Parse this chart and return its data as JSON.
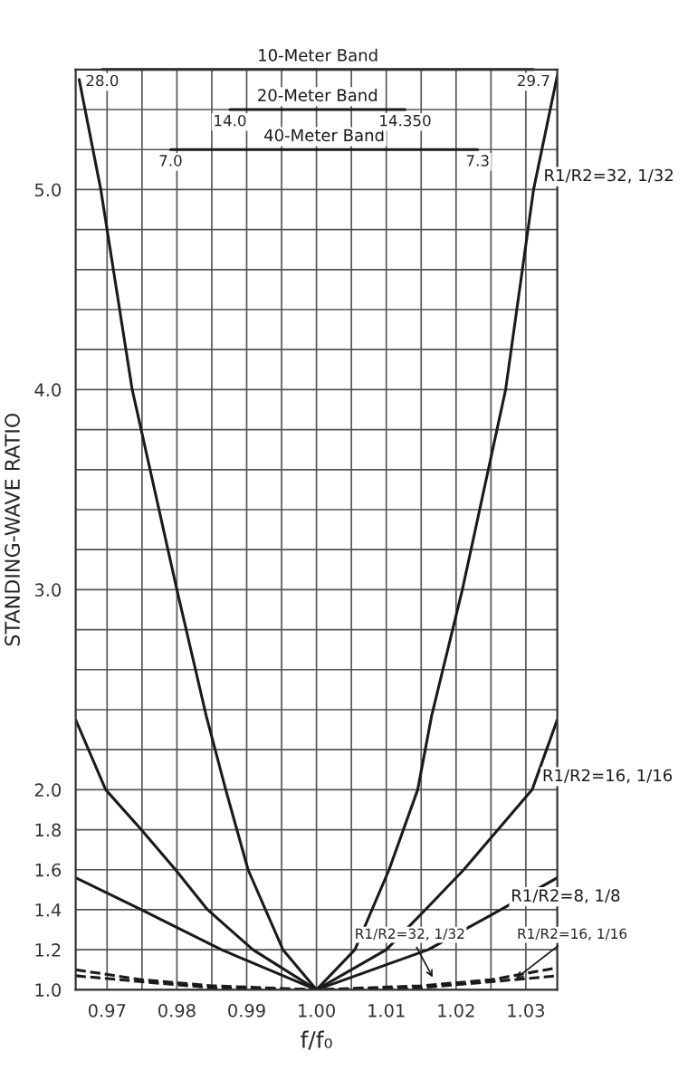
{
  "chart_data": {
    "type": "line",
    "xlabel": "f/f₀",
    "ylabel": "STANDING-WAVE RATIO",
    "xlim": [
      0.9655,
      1.0345
    ],
    "ylim": [
      1.0,
      5.6
    ],
    "xticks": [
      {
        "value": 0.97,
        "label": "0.97"
      },
      {
        "value": 0.975,
        "label": null
      },
      {
        "value": 0.98,
        "label": "0.98"
      },
      {
        "value": 0.985,
        "label": null
      },
      {
        "value": 0.99,
        "label": "0.99"
      },
      {
        "value": 0.995,
        "label": null
      },
      {
        "value": 1.0,
        "label": "1.00"
      },
      {
        "value": 1.005,
        "label": null
      },
      {
        "value": 1.01,
        "label": "1.01"
      },
      {
        "value": 1.015,
        "label": null
      },
      {
        "value": 1.02,
        "label": "1.02"
      },
      {
        "value": 1.025,
        "label": null
      },
      {
        "value": 1.03,
        "label": "1.03"
      }
    ],
    "yticks": [
      {
        "value": 1.0,
        "label": "1.0"
      },
      {
        "value": 1.2,
        "label": "1.2"
      },
      {
        "value": 1.4,
        "label": "1.4"
      },
      {
        "value": 1.6,
        "label": "1.6"
      },
      {
        "value": 1.8,
        "label": "1.8"
      },
      {
        "value": 2.0,
        "label": "2.0"
      },
      {
        "value": 2.2,
        "label": null
      },
      {
        "value": 2.4,
        "label": null
      },
      {
        "value": 2.6,
        "label": null
      },
      {
        "value": 2.8,
        "label": null
      },
      {
        "value": 3.0,
        "label": "3.0"
      },
      {
        "value": 3.2,
        "label": null
      },
      {
        "value": 3.4,
        "label": null
      },
      {
        "value": 3.6,
        "label": null
      },
      {
        "value": 3.8,
        "label": null
      },
      {
        "value": 4.0,
        "label": "4.0"
      },
      {
        "value": 4.2,
        "label": null
      },
      {
        "value": 4.4,
        "label": null
      },
      {
        "value": 4.6,
        "label": null
      },
      {
        "value": 4.8,
        "label": null
      },
      {
        "value": 5.0,
        "label": "5.0"
      },
      {
        "value": 5.2,
        "label": null
      },
      {
        "value": 5.4,
        "label": null
      },
      {
        "value": 5.6,
        "label": null
      }
    ],
    "grid": true,
    "legend": false,
    "marker": "none",
    "series": [
      {
        "name": "R1/R2=32, 1/32",
        "color": "#1a1a1a",
        "line_style": "solid",
        "x": [
          0.966,
          0.9691,
          0.9736,
          0.98,
          0.9842,
          0.987,
          0.9902,
          0.9952,
          1.0,
          1.0055,
          1.0104,
          1.0145,
          1.0165,
          1.0209,
          1.0271,
          1.0311,
          1.0345
        ],
        "values": [
          5.55,
          5.0,
          4.0,
          3.0,
          2.37,
          2.0,
          1.6,
          1.2,
          1.0,
          1.2,
          1.6,
          2.0,
          2.37,
          3.0,
          4.0,
          5.0,
          5.57
        ]
      },
      {
        "name": "R1/R2=16, 1/16",
        "color": "#1a1a1a",
        "line_style": "solid",
        "x": [
          0.9655,
          0.9698,
          0.9749,
          0.9798,
          0.9844,
          0.9909,
          1.0,
          1.01,
          1.0156,
          1.0211,
          1.026,
          1.0309,
          1.0345
        ],
        "values": [
          2.35,
          2.0,
          1.8,
          1.6,
          1.4,
          1.2,
          1.0,
          1.2,
          1.4,
          1.6,
          1.8,
          2.0,
          2.35
        ]
      },
      {
        "name": "R1/R2=8, 1/8",
        "color": "#1a1a1a",
        "line_style": "solid",
        "x": [
          0.9655,
          0.9749,
          0.9864,
          1.0,
          1.016,
          1.0264,
          1.0345
        ],
        "values": [
          1.56,
          1.4,
          1.2,
          1.0,
          1.2,
          1.4,
          1.56
        ]
      },
      {
        "color": "#1a1a1a",
        "line_style": "dashed",
        "x": [
          0.9655,
          0.975,
          0.985,
          1.0,
          1.015,
          1.025,
          1.0345
        ],
        "values": [
          1.1,
          1.05,
          1.02,
          1.0,
          1.02,
          1.05,
          1.11
        ]
      },
      {
        "color": "#1a1a1a",
        "line_style": "dashed",
        "x": [
          0.9655,
          0.975,
          0.985,
          1.0,
          1.015,
          1.025,
          1.0345
        ],
        "values": [
          1.07,
          1.04,
          1.01,
          1.0,
          1.01,
          1.04,
          1.07
        ]
      },
      {
        "name": "10-Meter Band",
        "color": "#1a1a1a",
        "line_style": "solid",
        "x": [
          0.9693,
          1.0311
        ],
        "values": [
          5.6,
          5.6
        ]
      },
      {
        "name": "20-Meter Band",
        "color": "#1a1a1a",
        "line_style": "solid",
        "x": [
          0.9876,
          1.0127
        ],
        "values": [
          5.4,
          5.4
        ]
      },
      {
        "name": "40-Meter Band",
        "color": "#1a1a1a",
        "line_style": "solid",
        "x": [
          0.9791,
          1.0231
        ],
        "values": [
          5.2,
          5.2
        ]
      }
    ],
    "annotations": [
      {
        "text": "28.0",
        "x": 0.9693,
        "y": 5.6
      },
      {
        "text": "29.7",
        "x": 1.0311,
        "y": 5.6
      },
      {
        "text": "14.0",
        "x": 0.9876,
        "y": 5.4
      },
      {
        "text": "14.350",
        "x": 1.0127,
        "y": 5.4
      },
      {
        "text": "7.0",
        "x": 0.9791,
        "y": 5.2
      },
      {
        "text": "7.3",
        "x": 1.0231,
        "y": 5.2
      },
      {
        "text": "R1/R2=32, 1/32",
        "x": 1.017,
        "y": 1.04
      },
      {
        "text": "R1/R2=16, 1/16",
        "x": 1.028,
        "y": 1.04
      }
    ]
  }
}
